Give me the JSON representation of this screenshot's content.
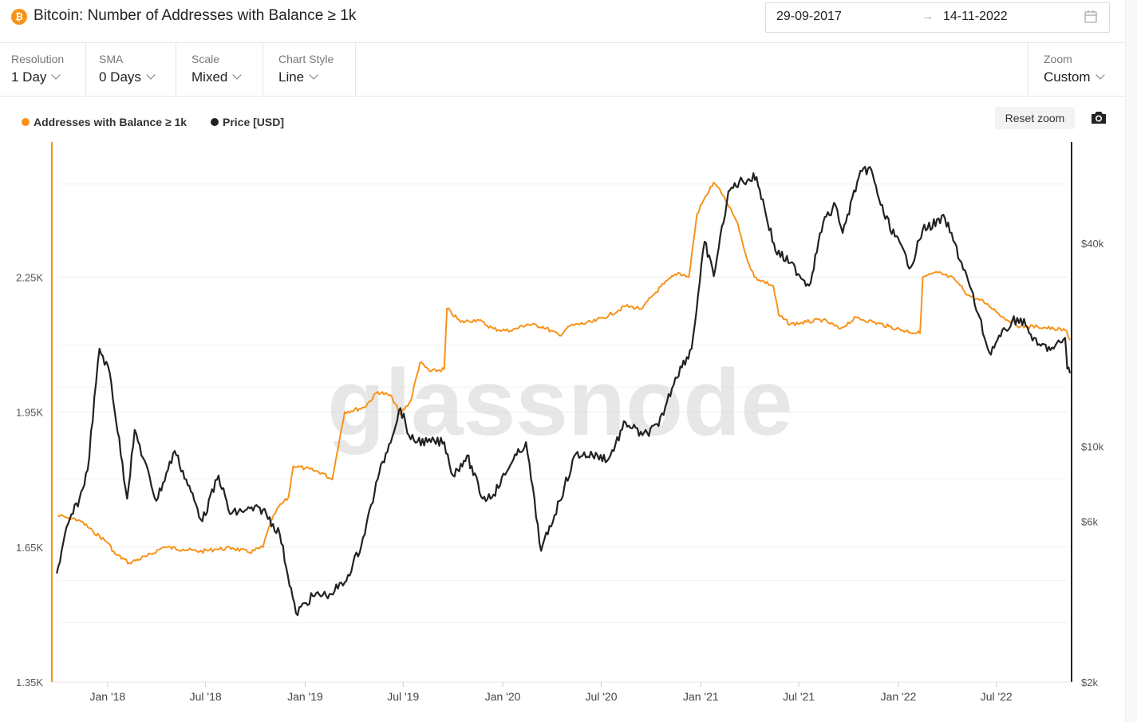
{
  "header": {
    "title": "Bitcoin: Number of Addresses with Balance ≥ 1k",
    "logo_symbol": "₿",
    "date_from": "29-09-2017",
    "date_arrow": "→",
    "date_to": "14-11-2022"
  },
  "controls": {
    "resolution": {
      "label": "Resolution",
      "value": "1 Day"
    },
    "sma": {
      "label": "SMA",
      "value": "0 Days"
    },
    "scale": {
      "label": "Scale",
      "value": "Mixed"
    },
    "chart_style": {
      "label": "Chart Style",
      "value": "Line"
    },
    "zoom": {
      "label": "Zoom",
      "value": "Custom"
    }
  },
  "buttons": {
    "reset_zoom": "Reset zoom"
  },
  "icons": {
    "logo": "bitcoin-icon",
    "calendar": "calendar-icon",
    "camera": "camera-icon"
  },
  "watermark": "glassnode",
  "colors": {
    "addresses": "#f7931a",
    "price": "#222222",
    "brand": "#f7931a"
  },
  "chart_data": {
    "type": "line",
    "title": "Bitcoin: Number of Addresses with Balance ≥ 1k",
    "legend_position": "top-left",
    "grid": true,
    "x_ticks": [
      "Jan '18",
      "Jul '18",
      "Jan '19",
      "Jul '19",
      "Jan '20",
      "Jul '20",
      "Jan '21",
      "Jul '21",
      "Jan '22",
      "Jul '22"
    ],
    "y_left": {
      "scale": "linear",
      "range": [
        1350,
        2550
      ],
      "ticks": [
        "1.35K",
        "1.65K",
        "1.95K",
        "2.25K"
      ]
    },
    "y_right": {
      "scale": "log",
      "range": [
        2000,
        80000
      ],
      "ticks": [
        "$2k",
        "$6k",
        "$10k",
        "$40k"
      ]
    },
    "series": [
      {
        "name": "Addresses with Balance ≥ 1k",
        "axis": "left",
        "points": [
          [
            "2017-10-01",
            1720
          ],
          [
            "2017-10-20",
            1715
          ],
          [
            "2017-11-10",
            1710
          ],
          [
            "2017-12-05",
            1685
          ],
          [
            "2018-01-01",
            1660
          ],
          [
            "2018-01-15",
            1635
          ],
          [
            "2018-02-10",
            1615
          ],
          [
            "2018-03-15",
            1630
          ],
          [
            "2018-04-15",
            1650
          ],
          [
            "2018-05-20",
            1645
          ],
          [
            "2018-06-20",
            1640
          ],
          [
            "2018-07-20",
            1645
          ],
          [
            "2018-08-20",
            1648
          ],
          [
            "2018-09-20",
            1638
          ],
          [
            "2018-10-15",
            1650
          ],
          [
            "2018-10-25",
            1690
          ],
          [
            "2018-11-10",
            1735
          ],
          [
            "2018-12-01",
            1760
          ],
          [
            "2018-12-10",
            1830
          ],
          [
            "2019-01-01",
            1825
          ],
          [
            "2019-02-01",
            1815
          ],
          [
            "2019-02-20",
            1800
          ],
          [
            "2019-03-01",
            1860
          ],
          [
            "2019-03-15",
            1950
          ],
          [
            "2019-04-20",
            1960
          ],
          [
            "2019-05-15",
            1995
          ],
          [
            "2019-06-10",
            1985
          ],
          [
            "2019-06-25",
            1945
          ],
          [
            "2019-07-15",
            1975
          ],
          [
            "2019-08-01",
            2060
          ],
          [
            "2019-08-20",
            2040
          ],
          [
            "2019-09-15",
            2045
          ],
          [
            "2019-09-20",
            2180
          ],
          [
            "2019-10-15",
            2150
          ],
          [
            "2019-11-15",
            2155
          ],
          [
            "2019-12-15",
            2135
          ],
          [
            "2020-01-15",
            2130
          ],
          [
            "2020-02-15",
            2145
          ],
          [
            "2020-03-15",
            2140
          ],
          [
            "2020-04-15",
            2120
          ],
          [
            "2020-05-01",
            2140
          ],
          [
            "2020-05-20",
            2145
          ],
          [
            "2020-06-15",
            2150
          ],
          [
            "2020-07-15",
            2165
          ],
          [
            "2020-08-15",
            2185
          ],
          [
            "2020-09-15",
            2180
          ],
          [
            "2020-10-01",
            2205
          ],
          [
            "2020-10-25",
            2235
          ],
          [
            "2020-11-20",
            2260
          ],
          [
            "2020-12-10",
            2250
          ],
          [
            "2020-12-25",
            2390
          ],
          [
            "2021-01-10",
            2430
          ],
          [
            "2021-01-25",
            2460
          ],
          [
            "2021-02-01",
            2450
          ],
          [
            "2021-02-20",
            2410
          ],
          [
            "2021-03-10",
            2370
          ],
          [
            "2021-03-25",
            2300
          ],
          [
            "2021-04-10",
            2250
          ],
          [
            "2021-05-15",
            2230
          ],
          [
            "2021-05-25",
            2165
          ],
          [
            "2021-06-15",
            2145
          ],
          [
            "2021-07-15",
            2150
          ],
          [
            "2021-08-15",
            2155
          ],
          [
            "2021-09-15",
            2135
          ],
          [
            "2021-10-15",
            2160
          ],
          [
            "2021-11-15",
            2150
          ],
          [
            "2021-12-15",
            2140
          ],
          [
            "2022-01-15",
            2130
          ],
          [
            "2022-02-10",
            2125
          ],
          [
            "2022-02-15",
            2250
          ],
          [
            "2022-03-15",
            2260
          ],
          [
            "2022-04-15",
            2245
          ],
          [
            "2022-05-10",
            2210
          ],
          [
            "2022-06-15",
            2190
          ],
          [
            "2022-07-15",
            2160
          ],
          [
            "2022-08-15",
            2140
          ],
          [
            "2022-09-15",
            2140
          ],
          [
            "2022-10-15",
            2135
          ],
          [
            "2022-11-08",
            2130
          ],
          [
            "2022-11-14",
            2110
          ]
        ]
      },
      {
        "name": "Price [USD]",
        "axis": "right",
        "points": [
          [
            "2017-09-29",
            4200
          ],
          [
            "2017-10-20",
            5900
          ],
          [
            "2017-11-10",
            7000
          ],
          [
            "2017-11-25",
            8500
          ],
          [
            "2017-12-17",
            19500
          ],
          [
            "2018-01-05",
            16500
          ],
          [
            "2018-02-06",
            7000
          ],
          [
            "2018-02-20",
            11200
          ],
          [
            "2018-04-01",
            6900
          ],
          [
            "2018-05-05",
            9700
          ],
          [
            "2018-06-25",
            6000
          ],
          [
            "2018-07-25",
            8200
          ],
          [
            "2018-08-15",
            6300
          ],
          [
            "2018-09-15",
            6500
          ],
          [
            "2018-10-15",
            6500
          ],
          [
            "2018-11-15",
            5500
          ],
          [
            "2018-12-15",
            3200
          ],
          [
            "2019-01-15",
            3600
          ],
          [
            "2019-02-15",
            3650
          ],
          [
            "2019-03-15",
            3950
          ],
          [
            "2019-04-15",
            5100
          ],
          [
            "2019-05-15",
            8000
          ],
          [
            "2019-06-26",
            13000
          ],
          [
            "2019-07-15",
            10500
          ],
          [
            "2019-08-15",
            10300
          ],
          [
            "2019-09-15",
            10300
          ],
          [
            "2019-10-01",
            8200
          ],
          [
            "2019-10-27",
            9400
          ],
          [
            "2019-11-25",
            7000
          ],
          [
            "2019-12-15",
            7200
          ],
          [
            "2020-01-15",
            8800
          ],
          [
            "2020-02-13",
            10300
          ],
          [
            "2020-03-12",
            4900
          ],
          [
            "2020-04-15",
            6900
          ],
          [
            "2020-05-15",
            9500
          ],
          [
            "2020-06-15",
            9400
          ],
          [
            "2020-07-15",
            9200
          ],
          [
            "2020-08-15",
            11800
          ],
          [
            "2020-09-15",
            10800
          ],
          [
            "2020-10-15",
            11500
          ],
          [
            "2020-11-15",
            16000
          ],
          [
            "2020-12-15",
            19500
          ],
          [
            "2021-01-08",
            40500
          ],
          [
            "2021-01-25",
            32000
          ],
          [
            "2021-02-21",
            57000
          ],
          [
            "2021-03-13",
            61000
          ],
          [
            "2021-04-14",
            63000
          ],
          [
            "2021-05-19",
            38000
          ],
          [
            "2021-06-15",
            35000
          ],
          [
            "2021-07-20",
            30000
          ],
          [
            "2021-08-15",
            46000
          ],
          [
            "2021-09-07",
            52000
          ],
          [
            "2021-09-20",
            43000
          ],
          [
            "2021-10-20",
            63000
          ],
          [
            "2021-11-09",
            67500
          ],
          [
            "2021-12-05",
            49000
          ],
          [
            "2022-01-24",
            34000
          ],
          [
            "2022-02-15",
            44000
          ],
          [
            "2022-03-28",
            47500
          ],
          [
            "2022-05-10",
            31000
          ],
          [
            "2022-06-18",
            19000
          ],
          [
            "2022-07-30",
            23500
          ],
          [
            "2022-08-15",
            24000
          ],
          [
            "2022-09-15",
            20000
          ],
          [
            "2022-10-15",
            19500
          ],
          [
            "2022-11-05",
            21000
          ],
          [
            "2022-11-09",
            17000
          ],
          [
            "2022-11-14",
            16500
          ]
        ]
      }
    ]
  }
}
